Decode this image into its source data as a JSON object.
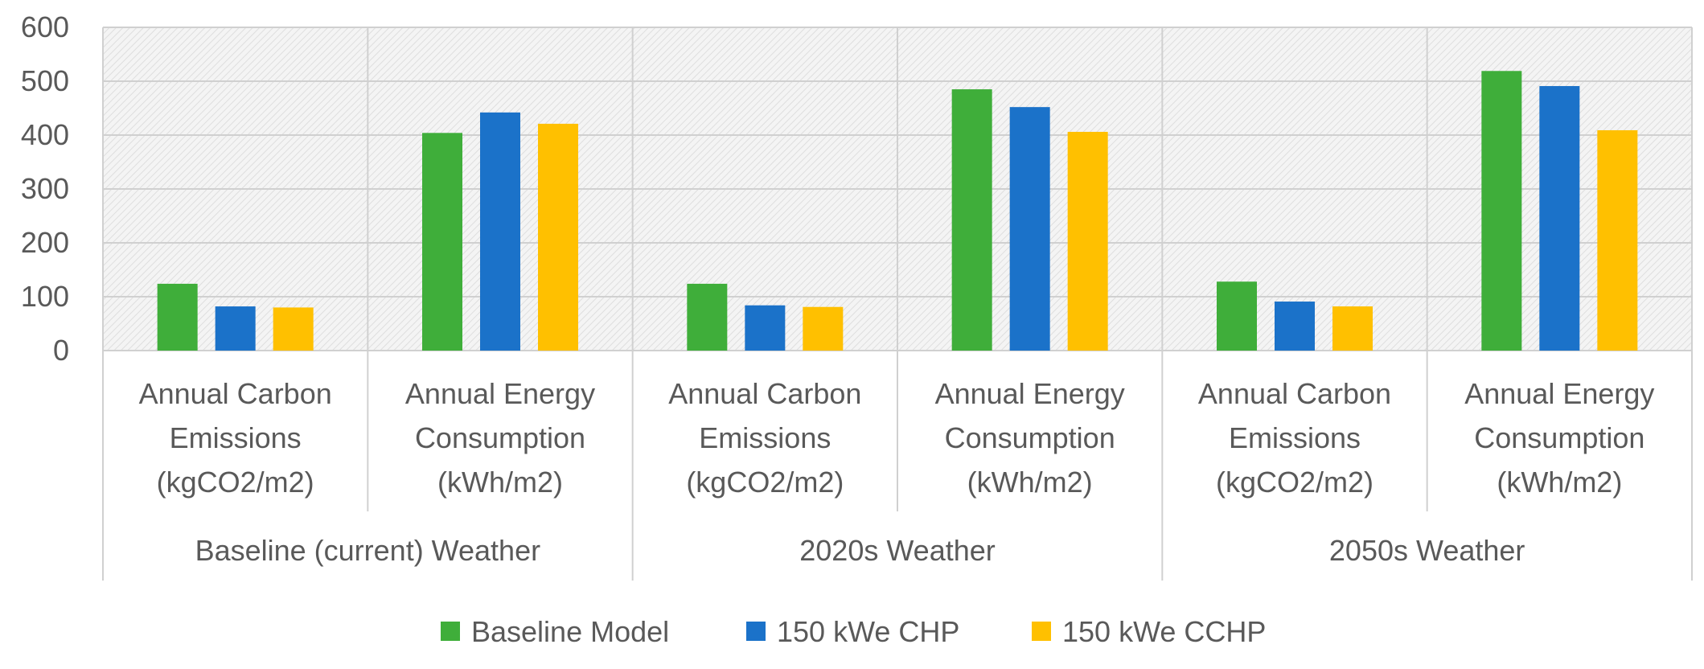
{
  "chart_data": {
    "type": "bar",
    "yticks": [
      0,
      100,
      200,
      300,
      400,
      500,
      600
    ],
    "ylim": [
      0,
      600
    ],
    "grid": true,
    "legend_position": "bottom",
    "groups": [
      {
        "label": "Baseline (current) Weather",
        "categories": [
          {
            "lines": [
              "Annual Carbon",
              "Emissions",
              "(kgCO2/m2)"
            ]
          },
          {
            "lines": [
              "Annual Energy",
              "Consumption",
              "(kWh/m2)"
            ]
          }
        ]
      },
      {
        "label": "2020s Weather",
        "categories": [
          {
            "lines": [
              "Annual Carbon",
              "Emissions",
              "(kgCO2/m2)"
            ]
          },
          {
            "lines": [
              "Annual Energy",
              "Consumption",
              "(kWh/m2)"
            ]
          }
        ]
      },
      {
        "label": "2050s Weather",
        "categories": [
          {
            "lines": [
              "Annual Carbon",
              "Emissions",
              "(kgCO2/m2)"
            ]
          },
          {
            "lines": [
              "Annual Energy",
              "Consumption",
              "(kWh/m2)"
            ]
          }
        ]
      }
    ],
    "series": [
      {
        "name": "Baseline Model",
        "color": "#3FAE3A",
        "values": [
          124,
          404,
          124,
          485,
          128,
          519
        ]
      },
      {
        "name": "150 kWe CHP",
        "color": "#1B72C9",
        "values": [
          82,
          442,
          84,
          452,
          91,
          491
        ]
      },
      {
        "name": "150 kWe CCHP",
        "color": "#FFC000",
        "values": [
          80,
          421,
          81,
          406,
          82,
          409
        ]
      }
    ]
  }
}
